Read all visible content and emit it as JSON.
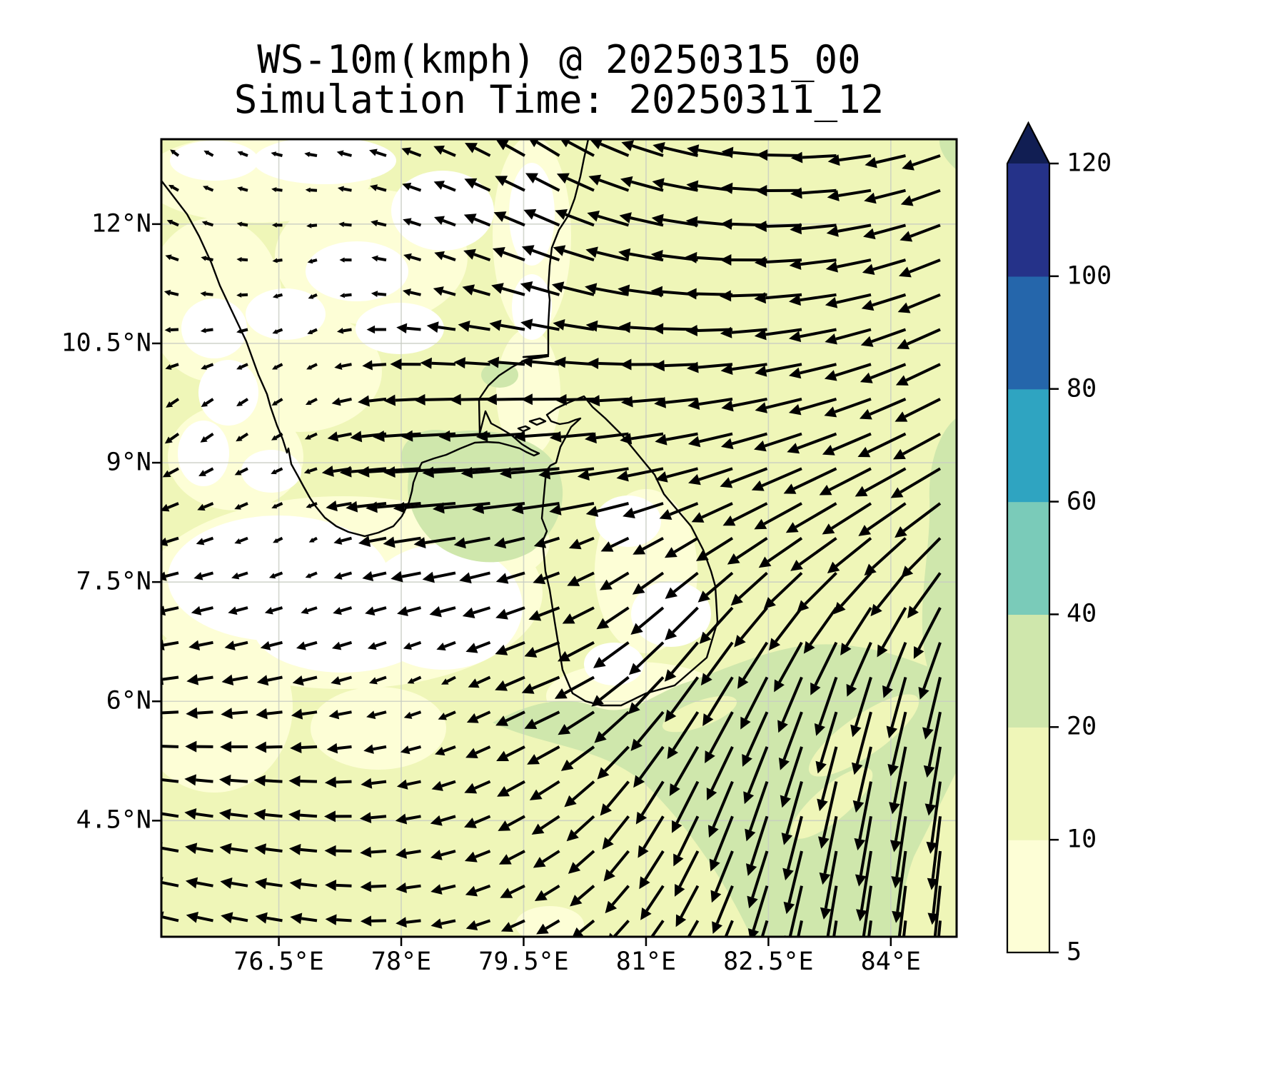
{
  "title": {
    "line1": "WS-10m(kmph) @ 20250315_00",
    "line2": "Simulation Time: 20250311_12"
  },
  "axes": {
    "x_ticks": [
      {
        "label": "76.5°E",
        "lon": 76.5
      },
      {
        "label": "78°E",
        "lon": 78.0
      },
      {
        "label": "79.5°E",
        "lon": 79.5
      },
      {
        "label": "81°E",
        "lon": 81.0
      },
      {
        "label": "82.5°E",
        "lon": 82.5
      },
      {
        "label": "84°E",
        "lon": 84.0
      }
    ],
    "y_ticks": [
      {
        "label": "12°N",
        "lat": 12.0
      },
      {
        "label": "10.5°N",
        "lat": 10.5
      },
      {
        "label": "9°N",
        "lat": 9.0
      },
      {
        "label": "7.5°N",
        "lat": 7.5
      },
      {
        "label": "6°N",
        "lat": 6.0
      },
      {
        "label": "4.5°N",
        "lat": 4.5
      }
    ]
  },
  "colorbar": {
    "tick_labels": [
      "120",
      "100",
      "80",
      "60",
      "40",
      "20",
      "10",
      "5"
    ],
    "segments_bottom_to_top": [
      {
        "range": "5-10",
        "color": "#fdfed6"
      },
      {
        "range": "10-20",
        "color": "#eff6b8"
      },
      {
        "range": "20-40",
        "color": "#cfe7ac"
      },
      {
        "range": "40-60",
        "color": "#7acbb9"
      },
      {
        "range": "60-80",
        "color": "#2fa4c1"
      },
      {
        "range": "80-100",
        "color": "#2566ab"
      },
      {
        "range": "100-120",
        "color": "#253289"
      }
    ],
    "extend_max_color": "#111e53"
  },
  "colors": {
    "background": "#ffffff",
    "lt5": "#ffffff",
    "c5_10": "#fdfed6",
    "c10_20": "#eff6b8",
    "c20_40": "#cfe7ac",
    "coastline": "#000000",
    "arrow": "#000000",
    "grid": "#c8ccc3",
    "frame": "#000000"
  },
  "chart_data": {
    "type": "quiver_contour_map",
    "variable": "WS-10m",
    "units": "kmph",
    "valid_time": "20250315_00",
    "simulation_time": "20250311_12",
    "lon_range": [
      75.05,
      84.85
    ],
    "lat_range": [
      3.0,
      13.1
    ],
    "contour_levels": [
      5,
      10,
      20,
      40,
      60,
      80,
      100,
      120
    ],
    "colorbar_extend": "max",
    "map_features": [
      "south-india-coastline",
      "sri-lanka-coastline"
    ],
    "wind_field": {
      "comment": "10m wind vectors (kmph) read from quiver arrows; rows ordered north to south",
      "lons": [
        75.3,
        76.9,
        78.5,
        80.1,
        81.7,
        83.3,
        84.8
      ],
      "lats": [
        12.9,
        11.2,
        9.6,
        8.8,
        8.0,
        6.4,
        4.8,
        3.2
      ],
      "u": [
        [
          -4,
          -6,
          -10,
          -16,
          -22,
          -22,
          -18
        ],
        [
          -7,
          -4,
          -9,
          -20,
          -23,
          -23,
          -20
        ],
        [
          -6,
          -5,
          -22,
          -18,
          -21,
          -23,
          -22
        ],
        [
          -8,
          -5,
          -38,
          -30,
          -20,
          -26,
          -24
        ],
        [
          -10,
          -3,
          -20,
          -10,
          -16,
          -22,
          -18
        ],
        [
          -13,
          -12,
          -5,
          -20,
          -16,
          -10,
          -7
        ],
        [
          -14,
          -14,
          -12,
          -14,
          -12,
          -7,
          -4
        ],
        [
          -13,
          -13,
          -12,
          -11,
          -10,
          -5,
          -3
        ]
      ],
      "v": [
        [
          3,
          1,
          4,
          10,
          5,
          -1,
          -7
        ],
        [
          2,
          -2,
          3,
          6,
          2,
          -3,
          -9
        ],
        [
          -5,
          -3,
          -1,
          -1,
          -3,
          -7,
          -12
        ],
        [
          -4,
          -2,
          -2,
          -3,
          -6,
          -13,
          -15
        ],
        [
          -3,
          -2,
          -3,
          -4,
          -10,
          -16,
          -20
        ],
        [
          -2,
          -3,
          -3,
          -8,
          -22,
          -28,
          -30
        ],
        [
          2,
          1,
          -3,
          -10,
          -26,
          -33,
          -36
        ],
        [
          3,
          2,
          -2,
          -7,
          -18,
          -33,
          -36
        ]
      ]
    }
  }
}
